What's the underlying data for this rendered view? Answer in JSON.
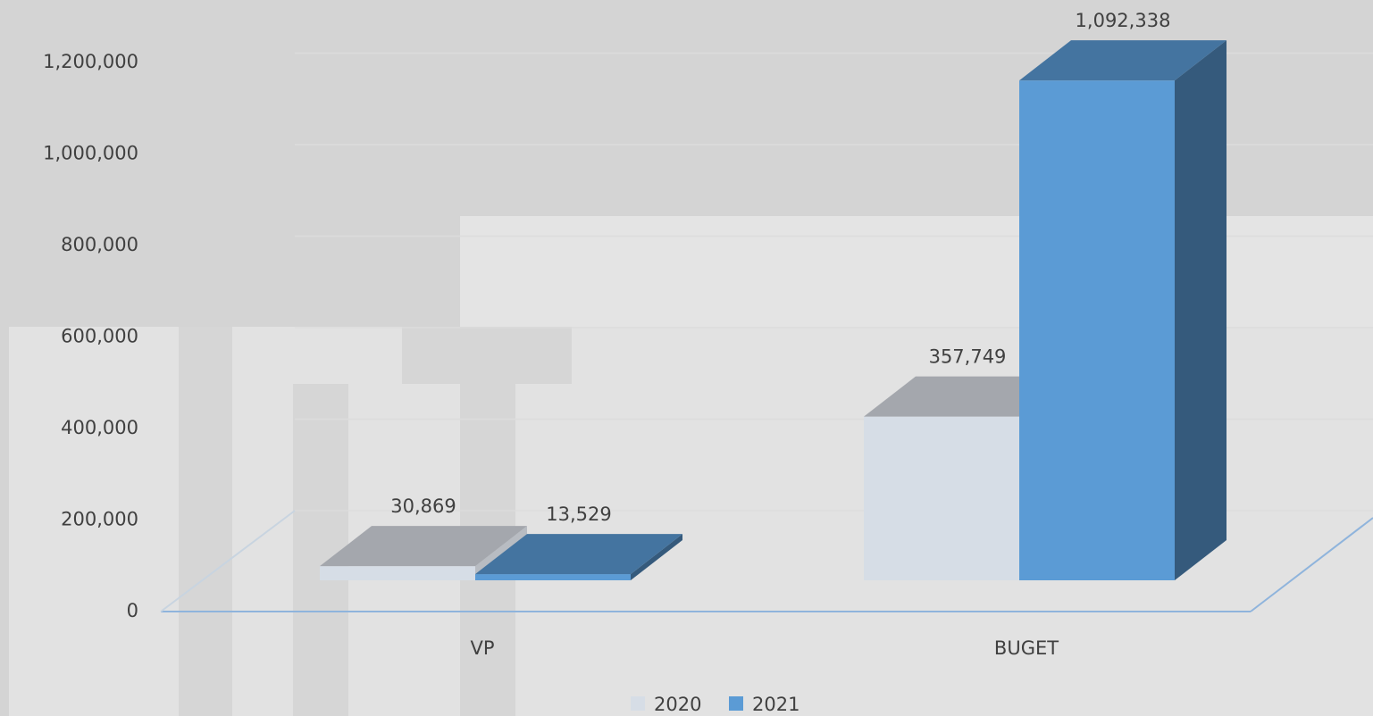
{
  "chart_data": {
    "type": "bar",
    "categories": [
      "VP",
      "BUGET"
    ],
    "series": [
      {
        "name": "2020",
        "color": "#d6dde6",
        "values": [
          30869,
          357749
        ],
        "value_labels": [
          "30,869",
          "357,749"
        ]
      },
      {
        "name": "2021",
        "color": "#5b9bd5",
        "values": [
          13529,
          1092338
        ],
        "value_labels": [
          "13,529",
          "1,092,338"
        ]
      }
    ],
    "ylim": [
      0,
      1200000
    ],
    "yticks": [
      0,
      {
        "value": 200000,
        "label": "200,000"
      },
      {
        "value": 400000,
        "label": "400,000"
      },
      {
        "value": 600000,
        "label": "600,000"
      },
      {
        "value": 800000,
        "label": "800,000"
      },
      {
        "value": 1000000,
        "label": "1,000,000"
      },
      {
        "value": 1200000,
        "label": "1,200,000"
      }
    ],
    "legend": "bottom"
  }
}
